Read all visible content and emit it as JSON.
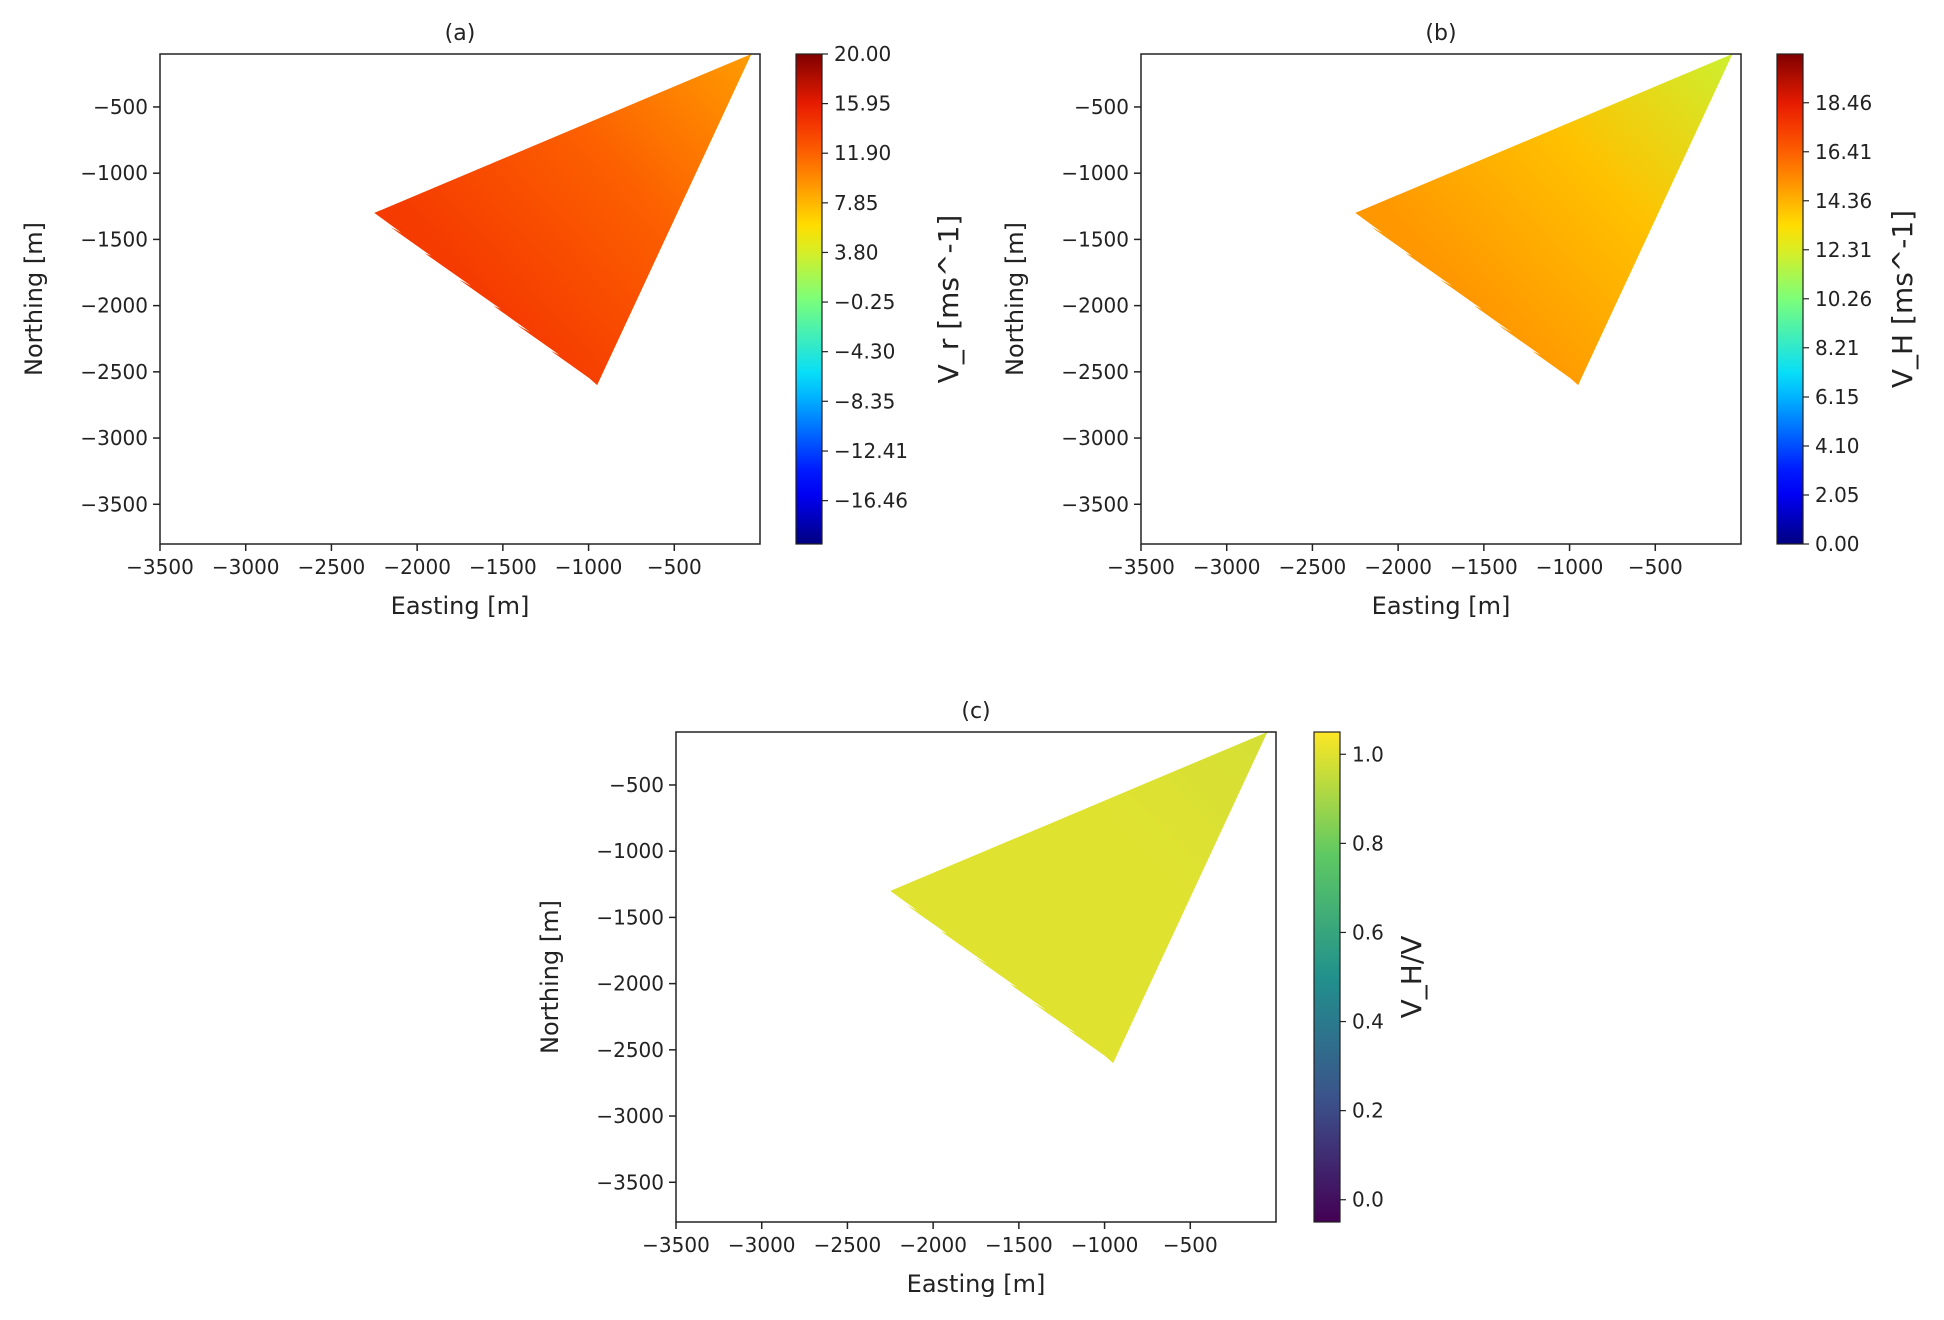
{
  "chart_data": [
    {
      "type": "heatmap",
      "panel_label": "(a)",
      "xlabel": "Easting [m]",
      "ylabel": "Northing [m]",
      "xlim": [
        -3500,
        0
      ],
      "ylim": [
        -3800,
        -100
      ],
      "xticks": [
        -3500,
        -3000,
        -2500,
        -2000,
        -1500,
        -1000,
        -500
      ],
      "yticks": [
        -500,
        -1000,
        -1500,
        -2000,
        -2500,
        -3000,
        -3500
      ],
      "colorbar": {
        "label": "V_r [ms^-1]",
        "colormap": "jet",
        "range": [
          -20,
          20
        ],
        "ticks": [
          "20.00",
          "15.95",
          "11.90",
          "7.85",
          "3.80",
          "-0.25",
          "-4.30",
          "-8.35",
          "-12.41",
          "-16.46"
        ],
        "tick_values": [
          20,
          15.95,
          11.9,
          7.85,
          3.8,
          -0.25,
          -4.3,
          -8.35,
          -12.41,
          -16.46
        ]
      },
      "scan_sector": {
        "apex": [
          -50,
          -100
        ],
        "upper_edge_end": [
          -2250,
          -1300
        ],
        "lower_edge_end": [
          -950,
          -2600
        ],
        "typical_value": 12,
        "range_near_apex": 9,
        "range_far_edge": 14
      }
    },
    {
      "type": "heatmap",
      "panel_label": "(b)",
      "xlabel": "Easting [m]",
      "ylabel": "Northing [m]",
      "xlim": [
        -3500,
        0
      ],
      "ylim": [
        -3800,
        -100
      ],
      "xticks": [
        -3500,
        -3000,
        -2500,
        -2000,
        -1500,
        -1000,
        -500
      ],
      "yticks": [
        -500,
        -1000,
        -1500,
        -2000,
        -2500,
        -3000,
        -3500
      ],
      "colorbar": {
        "label": "V_H [ms^-1]",
        "colormap": "jet",
        "range": [
          0,
          20.5
        ],
        "ticks": [
          "18.46",
          "16.41",
          "14.36",
          "12.31",
          "10.26",
          "8.21",
          "6.15",
          "4.10",
          "2.05",
          "0.00"
        ],
        "tick_values": [
          18.46,
          16.41,
          14.36,
          12.31,
          10.26,
          8.21,
          6.15,
          4.1,
          2.05,
          0
        ]
      },
      "scan_sector": {
        "apex": [
          -50,
          -100
        ],
        "upper_edge_end": [
          -2250,
          -1300
        ],
        "lower_edge_end": [
          -950,
          -2600
        ],
        "typical_value": 14,
        "range_near_apex": 12,
        "range_far_edge": 15
      }
    },
    {
      "type": "heatmap",
      "panel_label": "(c)",
      "xlabel": "Easting [m]",
      "ylabel": "Northing [m]",
      "xlim": [
        -3500,
        0
      ],
      "ylim": [
        -3800,
        -100
      ],
      "xticks": [
        -3500,
        -3000,
        -2500,
        -2000,
        -1500,
        -1000,
        -500
      ],
      "yticks": [
        -500,
        -1000,
        -1500,
        -2000,
        -2500,
        -3000,
        -3500
      ],
      "colorbar": {
        "label": "V_H/V",
        "colormap": "viridis",
        "range": [
          -0.05,
          1.05
        ],
        "ticks": [
          "1.0",
          "0.8",
          "0.6",
          "0.4",
          "0.2",
          "0.0"
        ],
        "tick_values": [
          1.0,
          0.8,
          0.6,
          0.4,
          0.2,
          0.0
        ]
      },
      "scan_sector": {
        "apex": [
          -50,
          -100
        ],
        "upper_edge_end": [
          -2250,
          -1300
        ],
        "lower_edge_end": [
          -950,
          -2600
        ],
        "typical_value": 1.0,
        "range_near_apex": 0.98,
        "range_far_edge": 1.0
      }
    }
  ]
}
